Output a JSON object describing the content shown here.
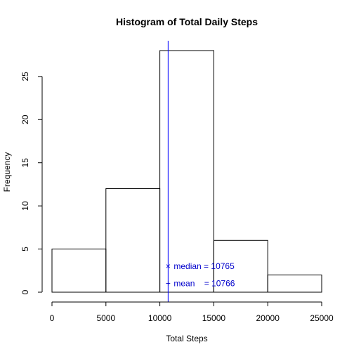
{
  "chart_data": {
    "type": "bar",
    "title": "Histogram of Total Daily Steps",
    "xlabel": "Total Steps",
    "ylabel": "Frequency",
    "bins": [
      {
        "from": 0,
        "to": 5000,
        "count": 5
      },
      {
        "from": 5000,
        "to": 10000,
        "count": 12
      },
      {
        "from": 10000,
        "to": 15000,
        "count": 28
      },
      {
        "from": 15000,
        "to": 20000,
        "count": 6
      },
      {
        "from": 20000,
        "to": 25000,
        "count": 2
      }
    ],
    "xlim": [
      0,
      25000
    ],
    "ylim": [
      0,
      28
    ],
    "x_ticks": [
      0,
      5000,
      10000,
      15000,
      20000,
      25000
    ],
    "x_tick_labels": [
      "0",
      "5000",
      "10000",
      "15000",
      "20000",
      "25000"
    ],
    "y_ticks": [
      0,
      5,
      10,
      15,
      20,
      25
    ],
    "y_tick_labels": [
      "0",
      "5",
      "10",
      "15",
      "20",
      "25"
    ],
    "grid": false,
    "reference_line": {
      "x": 10766,
      "color": "#0000ff"
    },
    "annotations": [
      {
        "symbol": "×",
        "text": "median = 10765",
        "x": 10766,
        "y": 3,
        "color": "#0000cc"
      },
      {
        "symbol": "+",
        "text": "mean    = 10766",
        "x": 10766,
        "y": 1,
        "color": "#0000cc"
      }
    ]
  }
}
